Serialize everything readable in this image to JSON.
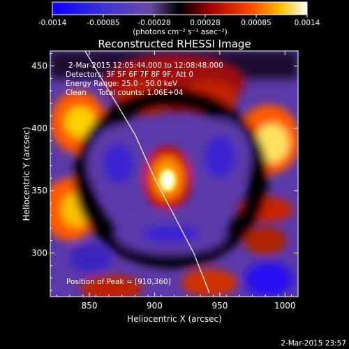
{
  "colorbar": {
    "ticks": [
      "-0.0014",
      "-0.00085",
      "-0.00028",
      "0.00028",
      "0.00085",
      "0.0014"
    ],
    "units": "(photons cm⁻² s⁻¹ asec⁻²)"
  },
  "chart_data": {
    "type": "heatmap",
    "title": "Reconstructed RHESSI Image",
    "xlabel": "Heliocentric X (arcsec)",
    "ylabel": "Heliocentric Y (arcsec)",
    "xlim": [
      820,
      1010
    ],
    "ylim": [
      265,
      462
    ],
    "xticks": [
      850,
      900,
      950,
      1000
    ],
    "yticks": [
      300,
      350,
      400,
      450
    ],
    "clim": [
      -0.0014,
      0.0014
    ],
    "colormap": "rainbow-blue-white",
    "info": [
      "2-Mar-2015 12:05:44.000 to 12:08:48.000",
      "Detectors: 3F 5F 6F 7F 8F 9F, Att 0",
      "Energy Range: 25.0 - 50.0 keV",
      "Clean     Total counts: 1.06E+04"
    ],
    "peak_label": "Position of Peak = [910,360]",
    "peak": [
      910,
      360
    ],
    "limb_curve": [
      [
        845,
        465
      ],
      [
        865,
        430
      ],
      [
        885,
        395
      ],
      [
        900,
        360
      ],
      [
        915,
        330
      ],
      [
        930,
        300
      ],
      [
        942,
        268
      ]
    ]
  },
  "footer_timestamp": "2-Mar-2015 23:57"
}
